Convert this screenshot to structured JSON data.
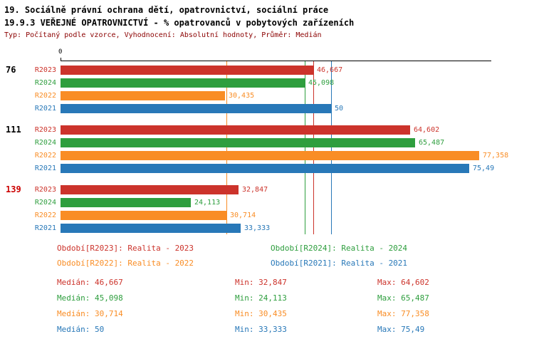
{
  "header": {
    "title_line1": "19. Sociálně právní ochrana dětí, opatrovnictví, sociální práce",
    "title_line2": "19.9.3 VEŘEJNÉ OPATROVNICTVÍ - % opatrovanců v pobytových zařízeních",
    "meta": "Typ: Počítaný podle vzorce, Vyhodnocení: Absolutní hodnoty, Průměr: Medián"
  },
  "chart_data": {
    "type": "bar",
    "orientation": "horizontal",
    "axis": {
      "origin_label": "0",
      "xmin": 0,
      "xmax": 80,
      "grid": false
    },
    "series_colors": {
      "R2023": "#cc332b",
      "R2024": "#2e9e3e",
      "R2022": "#f98d25",
      "R2021": "#2878b8"
    },
    "groups": [
      {
        "label": "76",
        "label_color": "#000000",
        "bars": [
          {
            "series": "R2023",
            "value": 46.667,
            "value_label": "46,667"
          },
          {
            "series": "R2024",
            "value": 45.098,
            "value_label": "45,098"
          },
          {
            "series": "R2022",
            "value": 30.435,
            "value_label": "30,435"
          },
          {
            "series": "R2021",
            "value": 50,
            "value_label": "50"
          }
        ]
      },
      {
        "label": "111",
        "label_color": "#000000",
        "bars": [
          {
            "series": "R2023",
            "value": 64.602,
            "value_label": "64,602"
          },
          {
            "series": "R2024",
            "value": 65.487,
            "value_label": "65,487"
          },
          {
            "series": "R2022",
            "value": 77.358,
            "value_label": "77,358"
          },
          {
            "series": "R2021",
            "value": 75.49,
            "value_label": "75,49"
          }
        ]
      },
      {
        "label": "139",
        "label_color": "#cc0000",
        "bars": [
          {
            "series": "R2023",
            "value": 32.847,
            "value_label": "32,847"
          },
          {
            "series": "R2024",
            "value": 24.113,
            "value_label": "24,113"
          },
          {
            "series": "R2022",
            "value": 30.714,
            "value_label": "30,714"
          },
          {
            "series": "R2021",
            "value": 33.333,
            "value_label": "33,333"
          }
        ]
      }
    ],
    "medians": [
      {
        "series": "R2023",
        "value": 46.667
      },
      {
        "series": "R2024",
        "value": 45.098
      },
      {
        "series": "R2022",
        "value": 30.714
      },
      {
        "series": "R2021",
        "value": 50
      }
    ]
  },
  "legend": {
    "items": [
      {
        "series": "R2023",
        "label": "Období[R2023]: Realita - 2023"
      },
      {
        "series": "R2024",
        "label": "Období[R2024]: Realita - 2024"
      },
      {
        "series": "R2022",
        "label": "Období[R2022]: Realita - 2022"
      },
      {
        "series": "R2021",
        "label": "Období[R2021]: Realita - 2021"
      }
    ]
  },
  "stats": {
    "rows": [
      {
        "series": "R2023",
        "median": "Medián: 46,667",
        "min": "Min: 32,847",
        "max": "Max: 64,602"
      },
      {
        "series": "R2024",
        "median": "Medián: 45,098",
        "min": "Min: 24,113",
        "max": "Max: 65,487"
      },
      {
        "series": "R2022",
        "median": "Medián: 30,714",
        "min": "Min: 30,435",
        "max": "Max: 77,358"
      },
      {
        "series": "R2021",
        "median": "Medián: 50",
        "min": "Min: 33,333",
        "max": "Max: 75,49"
      }
    ]
  }
}
